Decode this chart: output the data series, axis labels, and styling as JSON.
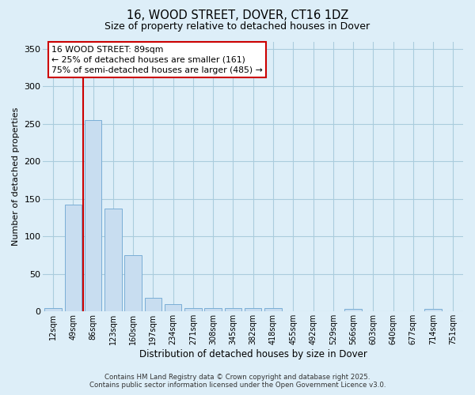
{
  "title": "16, WOOD STREET, DOVER, CT16 1DZ",
  "subtitle": "Size of property relative to detached houses in Dover",
  "xlabel": "Distribution of detached houses by size in Dover",
  "ylabel": "Number of detached properties",
  "bar_labels": [
    "12sqm",
    "49sqm",
    "86sqm",
    "123sqm",
    "160sqm",
    "197sqm",
    "234sqm",
    "271sqm",
    "308sqm",
    "345sqm",
    "382sqm",
    "418sqm",
    "455sqm",
    "492sqm",
    "529sqm",
    "566sqm",
    "603sqm",
    "640sqm",
    "677sqm",
    "714sqm",
    "751sqm"
  ],
  "bar_values": [
    5,
    142,
    255,
    137,
    75,
    18,
    10,
    5,
    5,
    5,
    5,
    5,
    0,
    0,
    0,
    3,
    0,
    0,
    0,
    3,
    0
  ],
  "bar_color": "#c8ddf0",
  "bar_edgecolor": "#7aaed6",
  "bar_width": 0.85,
  "ylim": [
    0,
    360
  ],
  "yticks": [
    0,
    50,
    100,
    150,
    200,
    250,
    300,
    350
  ],
  "red_line_x": 1.5,
  "red_line_color": "#cc0000",
  "annotation_text": "16 WOOD STREET: 89sqm\n← 25% of detached houses are smaller (161)\n75% of semi-detached houses are larger (485) →",
  "annotation_box_facecolor": "#ffffff",
  "annotation_box_edgecolor": "#cc0000",
  "footer_line1": "Contains HM Land Registry data © Crown copyright and database right 2025.",
  "footer_line2": "Contains public sector information licensed under the Open Government Licence v3.0.",
  "bg_color": "#ddeef8",
  "grid_color": "#aaccdd"
}
